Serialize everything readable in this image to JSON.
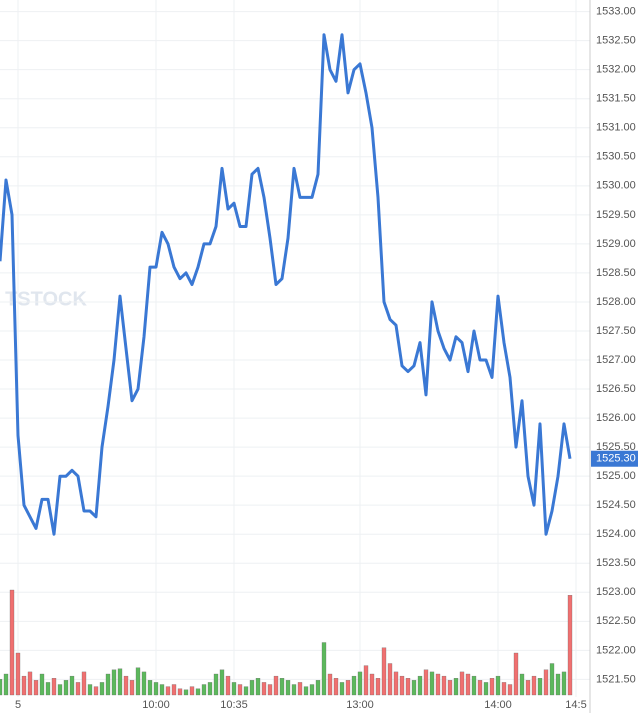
{
  "chart_data": {
    "type": "line",
    "watermark": "TSTOCK",
    "last_price_label": "1525.30",
    "x": [
      0,
      1,
      2,
      3,
      4,
      5,
      6,
      7,
      8,
      9,
      10,
      11,
      12,
      13,
      14,
      15,
      16,
      17,
      18,
      19,
      20,
      21,
      22,
      23,
      24,
      25,
      26,
      27,
      28,
      29,
      30,
      31,
      32,
      33,
      34,
      35,
      36,
      37,
      38,
      39,
      40,
      41,
      42,
      43,
      44,
      45,
      46,
      47,
      48,
      49,
      50,
      51,
      52,
      53,
      54,
      55,
      56,
      57,
      58,
      59,
      60,
      61,
      62,
      63,
      64,
      65,
      66,
      67,
      68,
      69,
      70,
      71,
      72,
      73,
      74,
      75,
      76,
      77,
      78,
      79,
      80,
      81,
      82,
      83,
      84,
      85,
      86,
      87,
      88,
      89,
      90,
      91,
      92,
      93,
      94,
      95
    ],
    "series": [
      {
        "name": "Price",
        "color": "#3a78d4",
        "values": [
          1528.7,
          1530.1,
          1529.5,
          1525.7,
          1524.5,
          1524.3,
          1524.1,
          1524.6,
          1524.6,
          1524.0,
          1525.0,
          1525.0,
          1525.1,
          1525.0,
          1524.4,
          1524.4,
          1524.3,
          1525.5,
          1526.2,
          1527.0,
          1528.1,
          1527.2,
          1526.3,
          1526.5,
          1527.4,
          1528.6,
          1528.6,
          1529.2,
          1529.0,
          1528.6,
          1528.4,
          1528.5,
          1528.3,
          1528.6,
          1529.0,
          1529.0,
          1529.3,
          1530.3,
          1529.6,
          1529.7,
          1529.3,
          1529.3,
          1530.2,
          1530.3,
          1529.8,
          1529.1,
          1528.3,
          1528.4,
          1529.1,
          1530.3,
          1529.8,
          1529.8,
          1529.8,
          1530.2,
          1532.6,
          1532.0,
          1531.8,
          1532.6,
          1531.6,
          1532.0,
          1532.1,
          1531.6,
          1531.0,
          1529.8,
          1528.0,
          1527.7,
          1527.6,
          1526.9,
          1526.8,
          1526.9,
          1527.3,
          1526.4,
          1528.0,
          1527.5,
          1527.2,
          1527.0,
          1527.4,
          1527.3,
          1526.8,
          1527.5,
          1527.0,
          1527.0,
          1526.7,
          1528.1,
          1527.3,
          1526.7,
          1525.5,
          1526.3,
          1525.0,
          1524.5,
          1525.9,
          1524.0,
          1524.4,
          1525.0,
          1525.9,
          1525.3
        ]
      },
      {
        "name": "Volume",
        "axis": "y2",
        "up_color": "#5cb85c",
        "down_color": "#f07070",
        "values": [
          15,
          20,
          100,
          40,
          18,
          22,
          14,
          20,
          12,
          16,
          10,
          14,
          18,
          12,
          22,
          10,
          8,
          12,
          20,
          24,
          25,
          18,
          14,
          26,
          22,
          14,
          12,
          10,
          8,
          10,
          6,
          5,
          8,
          6,
          10,
          12,
          20,
          24,
          18,
          12,
          10,
          8,
          14,
          16,
          12,
          10,
          18,
          16,
          14,
          10,
          12,
          8,
          10,
          14,
          50,
          20,
          16,
          12,
          14,
          18,
          22,
          28,
          20,
          16,
          45,
          30,
          22,
          18,
          16,
          14,
          18,
          24,
          22,
          20,
          18,
          14,
          16,
          22,
          20,
          18,
          14,
          12,
          16,
          18,
          12,
          10,
          40,
          20,
          14,
          18,
          16,
          24,
          30,
          20,
          22,
          95
        ]
      }
    ],
    "xlim": [
      0,
      96
    ],
    "xticks": [
      {
        "value": 3,
        "label": "5"
      },
      {
        "value": 26,
        "label": "10:00"
      },
      {
        "value": 39,
        "label": "10:35"
      },
      {
        "value": 60,
        "label": "13:00"
      },
      {
        "value": 83,
        "label": "14:00"
      },
      {
        "value": 96,
        "label": "14:5"
      }
    ],
    "ylim": [
      1521.3,
      1533.2
    ],
    "yticks": [
      {
        "value": 1521.5,
        "label": "1521.50"
      },
      {
        "value": 1522,
        "label": "1522.00"
      },
      {
        "value": 1522.5,
        "label": "1522.50"
      },
      {
        "value": 1523,
        "label": "1523.00"
      },
      {
        "value": 1523.5,
        "label": "1523.50"
      },
      {
        "value": 1524,
        "label": "1524.00"
      },
      {
        "value": 1524.5,
        "label": "1524.50"
      },
      {
        "value": 1525,
        "label": "1525.00"
      },
      {
        "value": 1525.5,
        "label": "1525.50"
      },
      {
        "value": 1526,
        "label": "1526.00"
      },
      {
        "value": 1526.5,
        "label": "1526.50"
      },
      {
        "value": 1527,
        "label": "1527.00"
      },
      {
        "value": 1527.5,
        "label": "1527.50"
      },
      {
        "value": 1528,
        "label": "1528.00"
      },
      {
        "value": 1528.5,
        "label": "1528.50"
      },
      {
        "value": 1529,
        "label": "1529.00"
      },
      {
        "value": 1529.5,
        "label": "1529.50"
      },
      {
        "value": 1530,
        "label": "1530.00"
      },
      {
        "value": 1530.5,
        "label": "1530.50"
      },
      {
        "value": 1531,
        "label": "1531.00"
      },
      {
        "value": 1531.5,
        "label": "1531.50"
      },
      {
        "value": 1532,
        "label": "1532.00"
      },
      {
        "value": 1532.5,
        "label": "1532.50"
      },
      {
        "value": 1533,
        "label": "1533.00"
      }
    ],
    "y2lim": [
      0,
      100
    ],
    "grid": true
  }
}
